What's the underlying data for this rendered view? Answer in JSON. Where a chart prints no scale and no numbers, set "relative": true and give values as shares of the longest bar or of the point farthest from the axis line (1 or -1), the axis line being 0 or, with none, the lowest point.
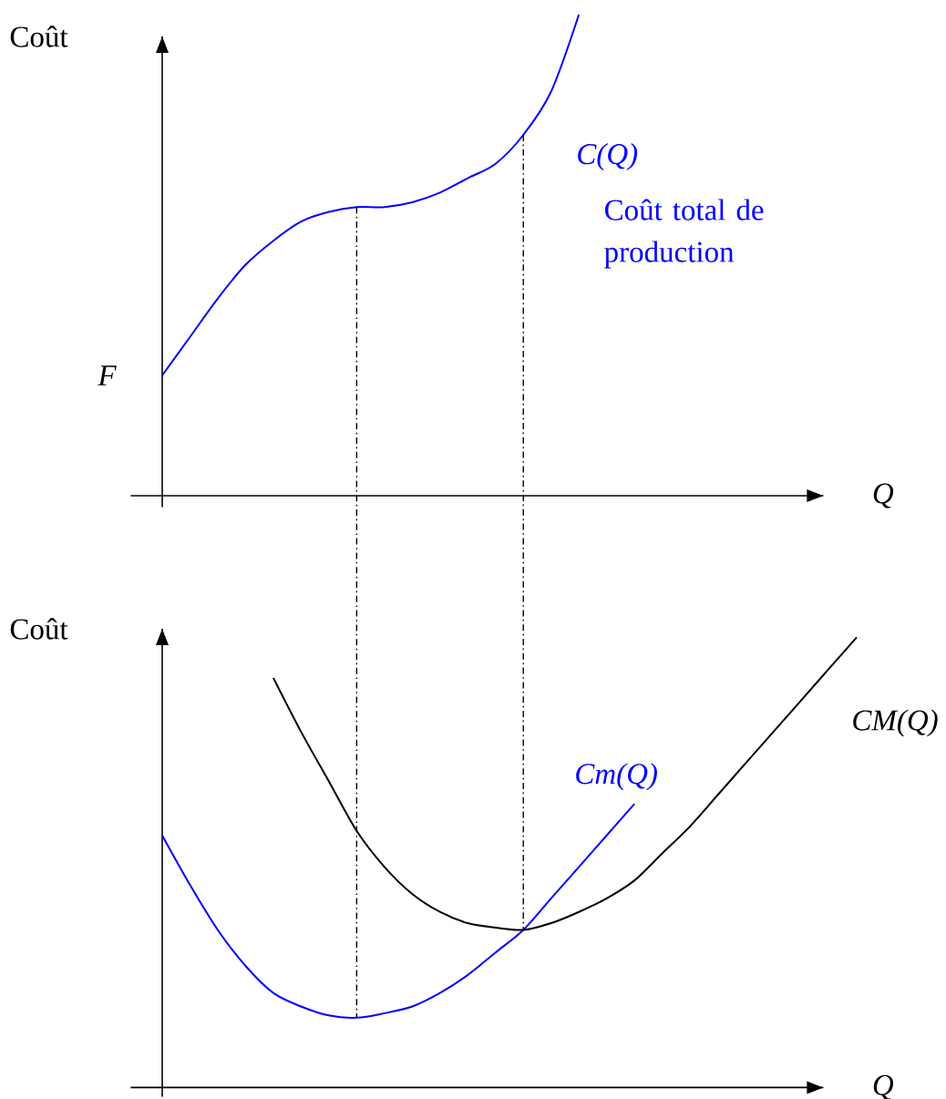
{
  "chart_data": [
    {
      "type": "line",
      "ylabel": "Coût",
      "xlabel": "Q",
      "relative": true,
      "marker": "none",
      "categories": [
        null,
        null,
        null,
        null,
        null,
        null,
        null,
        null,
        null,
        null,
        null,
        null,
        null,
        null,
        null,
        null,
        null,
        null,
        null,
        null,
        null,
        null,
        null,
        null,
        null,
        null
      ],
      "series": [
        {
          "name": "C(Q)",
          "color": "#0000ff",
          "values": [
            0.25,
            0.33,
            0.41,
            0.48,
            0.53,
            0.57,
            0.59,
            0.6,
            0.6,
            0.61,
            0.63,
            0.66,
            0.69,
            0.75,
            0.84,
            1,
            null,
            null,
            null,
            null,
            null,
            null,
            null,
            null,
            null,
            null
          ]
        }
      ],
      "annotations": [
        "F",
        "Coût total de production"
      ]
    },
    {
      "type": "line",
      "ylabel": "Coût",
      "xlabel": "Q",
      "relative": true,
      "marker": "none",
      "categories": [
        null,
        null,
        null,
        null,
        null,
        null,
        null,
        null,
        null,
        null,
        null,
        null,
        null,
        null,
        null,
        null,
        null,
        null,
        null,
        null,
        null,
        null,
        null,
        null,
        null,
        null
      ],
      "series": [
        {
          "name": "Cm(Q)",
          "color": "#0000ff",
          "values": [
            0.56,
            0.45,
            0.35,
            0.27,
            0.21,
            0.18,
            0.16,
            0.155,
            0.165,
            0.18,
            0.21,
            0.25,
            0.3,
            0.35,
            0.42,
            0.49,
            0.56,
            0.63,
            null,
            null,
            null,
            null,
            null,
            null,
            null,
            null
          ]
        },
        {
          "name": "CM(Q)",
          "color": "#000000",
          "values": [
            null,
            null,
            null,
            null,
            0.91,
            0.79,
            0.68,
            0.57,
            0.49,
            0.43,
            0.39,
            0.365,
            0.355,
            0.35,
            0.365,
            0.39,
            0.42,
            0.46,
            0.52,
            0.58,
            0.65,
            0.72,
            0.79,
            0.86,
            0.93,
            1
          ]
        }
      ]
    }
  ]
}
